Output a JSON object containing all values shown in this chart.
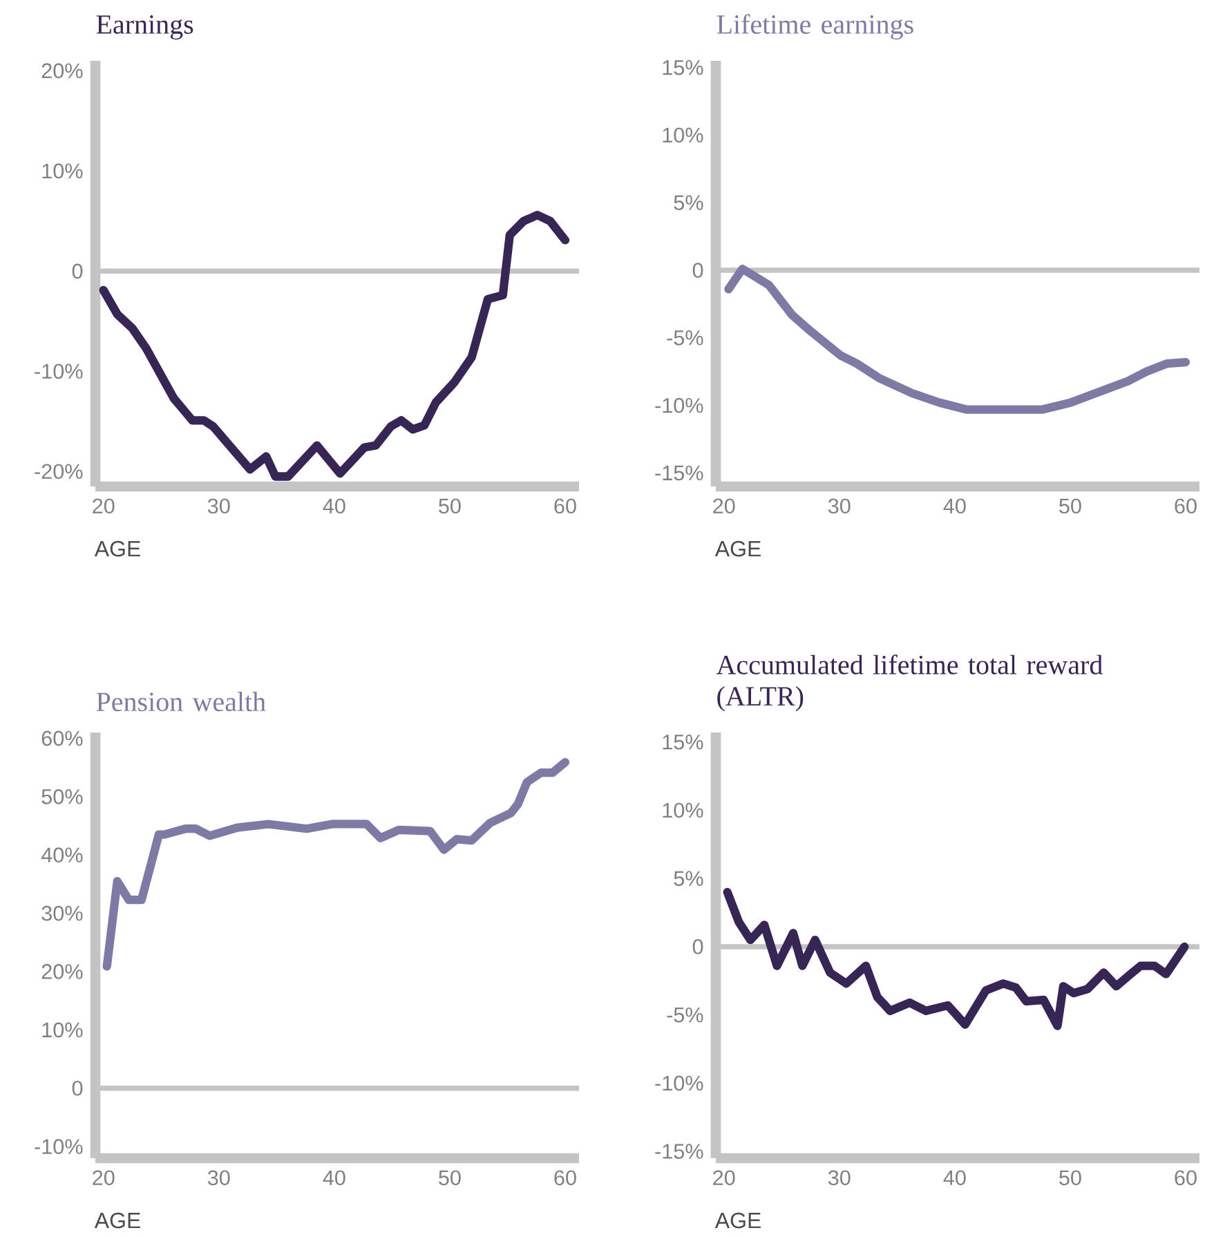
{
  "chart_data": [
    {
      "type": "line",
      "title": "Earnings",
      "xlabel": "AGE",
      "xlim": [
        19.3,
        61.2
      ],
      "xticks": [
        20,
        30,
        40,
        50,
        60
      ],
      "ylim": [
        -21.5,
        21
      ],
      "yticks": [
        {
          "value": 20,
          "label": "20%"
        },
        {
          "value": 10,
          "label": "10%"
        },
        0,
        {
          "value": -10,
          "label": "-10%"
        },
        {
          "value": -20,
          "label": "-20%"
        }
      ],
      "ref_lines": [
        {
          "axis": "y",
          "value": 0,
          "color": "#c4c4c4"
        }
      ],
      "series": [
        {
          "color": "#372556",
          "x": [
            20.0,
            21.2,
            22.5,
            23.7,
            26.1,
            27.7,
            28.7,
            29.5,
            32.7,
            34.1,
            34.9,
            36.0,
            38.5,
            40.5,
            42.6,
            43.6,
            44.9,
            45.8,
            46.8,
            47.8,
            48.8,
            50.4,
            51.9,
            53.3,
            54.6,
            55.2,
            56.4,
            57.6,
            58.7,
            60.0
          ],
          "values": [
            -1.9,
            -4.3,
            -5.7,
            -7.7,
            -12.7,
            -14.9,
            -14.9,
            -15.5,
            -19.8,
            -18.5,
            -20.5,
            -20.5,
            -17.4,
            -20.2,
            -17.6,
            -17.4,
            -15.5,
            -14.9,
            -15.8,
            -15.4,
            -13.1,
            -11.1,
            -8.6,
            -2.8,
            -2.4,
            3.6,
            5.0,
            5.6,
            5.0,
            3.1
          ]
        }
      ]
    },
    {
      "type": "line",
      "title": "Lifetime earnings",
      "xlabel": "AGE",
      "xlim": [
        19.3,
        61.2
      ],
      "xticks": [
        20,
        30,
        40,
        50,
        60
      ],
      "ylim": [
        -16,
        15.5
      ],
      "yticks": [
        {
          "value": 15,
          "label": "15%"
        },
        {
          "value": 10,
          "label": "10%"
        },
        {
          "value": 5,
          "label": "5%"
        },
        0,
        {
          "value": -5,
          "label": "-5%"
        },
        {
          "value": -10,
          "label": "-10%"
        },
        {
          "value": -15,
          "label": "-15%"
        }
      ],
      "ref_lines": [
        {
          "axis": "y",
          "value": 0,
          "color": "#c4c4c4"
        }
      ],
      "series": [
        {
          "color": "#7e7aa6",
          "x": [
            20.4,
            21.6,
            23.9,
            25.9,
            27.5,
            30.1,
            31.5,
            33.5,
            36.3,
            38.7,
            41.0,
            47.6,
            50.0,
            52.2,
            55.0,
            56.6,
            58.4,
            60.0
          ],
          "values": [
            -1.4,
            0.1,
            -1.1,
            -3.3,
            -4.5,
            -6.3,
            -6.9,
            -8.0,
            -9.1,
            -9.8,
            -10.3,
            -10.3,
            -9.8,
            -9.1,
            -8.2,
            -7.5,
            -6.9,
            -6.8
          ]
        }
      ]
    },
    {
      "type": "line",
      "title": "Pension wealth",
      "xlabel": "AGE",
      "xlim": [
        19.3,
        61.2
      ],
      "xticks": [
        20,
        30,
        40,
        50,
        60
      ],
      "ylim": [
        -12,
        61
      ],
      "yticks": [
        {
          "value": 60,
          "label": "60%"
        },
        {
          "value": 50,
          "label": "50%"
        },
        {
          "value": 40,
          "label": "40%"
        },
        {
          "value": 30,
          "label": "30%"
        },
        {
          "value": 20,
          "label": "20%"
        },
        {
          "value": 10,
          "label": "10%"
        },
        0,
        {
          "value": -10,
          "label": "-10%"
        }
      ],
      "ref_lines": [
        {
          "axis": "y",
          "value": 0,
          "color": "#c4c4c4"
        }
      ],
      "series": [
        {
          "color": "#7e7aa6",
          "x": [
            20.3,
            21.2,
            22.2,
            23.3,
            24.8,
            25.3,
            27.1,
            28.0,
            29.2,
            31.6,
            34.3,
            37.6,
            39.8,
            42.8,
            44.0,
            45.6,
            48.3,
            49.5,
            50.6,
            51.9,
            53.5,
            55.3,
            55.9,
            56.7,
            57.9,
            58.9,
            60.0
          ],
          "values": [
            20.9,
            35.5,
            32.3,
            32.3,
            43.5,
            43.5,
            44.5,
            44.5,
            43.3,
            44.7,
            45.3,
            44.5,
            45.3,
            45.3,
            42.9,
            44.3,
            44.1,
            40.9,
            42.7,
            42.5,
            45.5,
            47.2,
            48.7,
            52.5,
            54.1,
            54.1,
            55.9
          ]
        }
      ]
    },
    {
      "type": "line",
      "title": "Accumulated lifetime total reward (ALTR)",
      "xlabel": "AGE",
      "xlim": [
        19.3,
        61.2
      ],
      "xticks": [
        20,
        30,
        40,
        50,
        60
      ],
      "ylim": [
        -15.5,
        15.7
      ],
      "yticks": [
        {
          "value": 15,
          "label": "15%"
        },
        {
          "value": 10,
          "label": "10%"
        },
        {
          "value": 5,
          "label": "5%"
        },
        0,
        {
          "value": -5,
          "label": "-5%"
        },
        {
          "value": -10,
          "label": "-10%"
        },
        {
          "value": -15,
          "label": "-15%"
        }
      ],
      "ref_lines": [
        {
          "axis": "y",
          "value": 0,
          "color": "#c4c4c4"
        }
      ],
      "series": [
        {
          "color": "#372556",
          "x": [
            20.3,
            21.3,
            22.3,
            23.5,
            24.6,
            26.0,
            26.8,
            27.9,
            29.2,
            30.6,
            32.3,
            33.3,
            34.4,
            36.1,
            37.5,
            39.4,
            40.9,
            42.7,
            44.2,
            45.3,
            46.2,
            47.7,
            48.9,
            49.4,
            50.3,
            51.5,
            52.9,
            54.0,
            55.1,
            56.1,
            57.3,
            58.3,
            59.9
          ],
          "values": [
            4.0,
            1.8,
            0.5,
            1.6,
            -1.4,
            1.0,
            -1.4,
            0.5,
            -1.9,
            -2.7,
            -1.4,
            -3.7,
            -4.7,
            -4.1,
            -4.7,
            -4.3,
            -5.7,
            -3.2,
            -2.7,
            -3.0,
            -4.0,
            -3.9,
            -5.8,
            -2.9,
            -3.4,
            -3.1,
            -1.9,
            -2.9,
            -2.1,
            -1.4,
            -1.4,
            -2.0,
            0.0
          ]
        }
      ]
    }
  ]
}
